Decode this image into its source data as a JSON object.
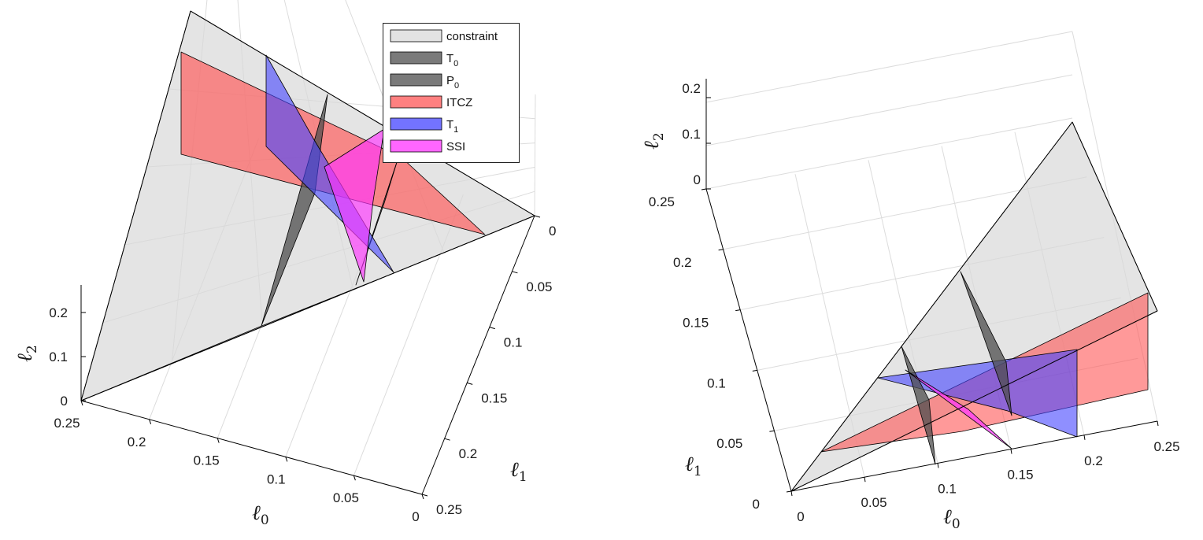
{
  "colors": {
    "constraint": "#d9d9d9",
    "T0": "#4d4d4d",
    "P0": "#4d4d4d",
    "ITCZ": "#ff5555",
    "T1": "#4444ff",
    "SSI": "#ff33ff"
  },
  "legend": [
    {
      "key": "constraint",
      "main": "constraint",
      "sub": ""
    },
    {
      "key": "T0",
      "main": "T",
      "sub": "0"
    },
    {
      "key": "P0",
      "main": "P",
      "sub": "0"
    },
    {
      "key": "ITCZ",
      "main": "ITCZ",
      "sub": ""
    },
    {
      "key": "T1",
      "main": "T",
      "sub": "1"
    },
    {
      "key": "SSI",
      "main": "SSI",
      "sub": ""
    }
  ],
  "axis_labels": {
    "l0": {
      "main": "ℓ",
      "sub": "0"
    },
    "l1": {
      "main": "ℓ",
      "sub": "1"
    },
    "l2": {
      "main": "ℓ",
      "sub": "2"
    }
  },
  "chart_data": [
    {
      "type": "3d-surface",
      "panel": "left",
      "view": "oblique from above",
      "axes": {
        "l0": {
          "lim": [
            0,
            0.25
          ],
          "ticks": [
            "0.25",
            "0.2",
            "0.15",
            "0.1",
            "0.05",
            "0"
          ]
        },
        "l1": {
          "lim": [
            0,
            0.25
          ],
          "ticks": [
            "0",
            "0.05",
            "0.1",
            "0.15",
            "0.2",
            "0.25"
          ]
        },
        "l2": {
          "lim": [
            0,
            0.25
          ],
          "ticks": [
            "0",
            "0.1",
            "0.2"
          ]
        }
      },
      "legend_position": "top-right",
      "grid": true,
      "surfaces": [
        {
          "name": "constraint",
          "description_key": "constraint"
        },
        {
          "name": "T0",
          "description_key": "T0"
        },
        {
          "name": "P0",
          "description_key": "P0"
        },
        {
          "name": "ITCZ",
          "description_key": "ITCZ"
        },
        {
          "name": "T1",
          "description_key": "T1"
        },
        {
          "name": "SSI",
          "description_key": "SSI"
        }
      ]
    },
    {
      "type": "3d-surface",
      "panel": "right",
      "view": "nearly top-down",
      "axes": {
        "l0": {
          "lim": [
            0,
            0.25
          ],
          "ticks": [
            "0",
            "0.05",
            "0.1",
            "0.15",
            "0.2",
            "0.25"
          ]
        },
        "l1": {
          "lim": [
            0,
            0.25
          ],
          "ticks": [
            "0",
            "0.05",
            "0.1",
            "0.15",
            "0.2",
            "0.25"
          ]
        },
        "l2": {
          "lim": [
            0,
            0.25
          ],
          "ticks": [
            "0",
            "0.1",
            "0.2"
          ]
        }
      },
      "grid": true
    }
  ]
}
